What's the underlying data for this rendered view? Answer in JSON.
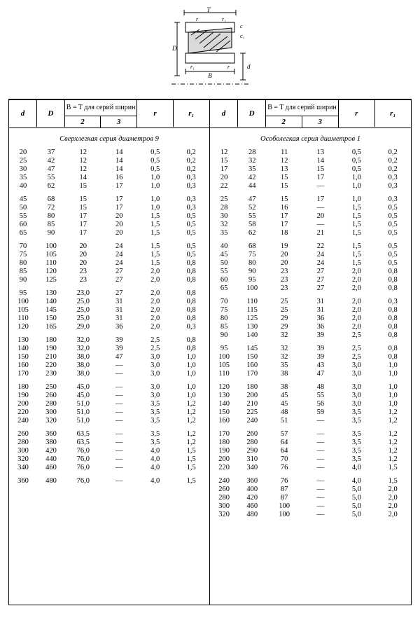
{
  "diagram": {
    "labels": [
      "T",
      "r",
      "r₁",
      "c",
      "c₁",
      "D",
      "r₁",
      "r",
      "B",
      "d"
    ]
  },
  "header": {
    "d": "d",
    "D": "D",
    "bt_caption": "B = T для серий ширин",
    "col2": "2",
    "col3": "3",
    "r": "r",
    "r1": "r₁"
  },
  "left": {
    "title": "Сверхлегкая серия диаметров 9",
    "groups": [
      [
        [
          "20",
          "37",
          "12",
          "14",
          "0,5",
          "0,2"
        ],
        [
          "25",
          "42",
          "12",
          "14",
          "0,5",
          "0,2"
        ],
        [
          "30",
          "47",
          "12",
          "14",
          "0,5",
          "0,2"
        ],
        [
          "35",
          "55",
          "14",
          "16",
          "1,0",
          "0,3"
        ],
        [
          "40",
          "62",
          "15",
          "17",
          "1,0",
          "0,3"
        ]
      ],
      [
        [
          "45",
          "68",
          "15",
          "17",
          "1,0",
          "0,3"
        ],
        [
          "50",
          "72",
          "15",
          "17",
          "1,0",
          "0,3"
        ],
        [
          "55",
          "80",
          "17",
          "20",
          "1,5",
          "0,5"
        ],
        [
          "60",
          "85",
          "17",
          "20",
          "1,5",
          "0,5"
        ],
        [
          "65",
          "90",
          "17",
          "20",
          "1,5",
          "0,5"
        ]
      ],
      [
        [
          "70",
          "100",
          "20",
          "24",
          "1,5",
          "0,5"
        ],
        [
          "75",
          "105",
          "20",
          "24",
          "1,5",
          "0,5"
        ],
        [
          "80",
          "110",
          "20",
          "24",
          "1,5",
          "0,8"
        ],
        [
          "85",
          "120",
          "23",
          "27",
          "2,0",
          "0,8"
        ],
        [
          "90",
          "125",
          "23",
          "27",
          "2,0",
          "0,8"
        ]
      ],
      [
        [
          "95",
          "130",
          "23,0",
          "27",
          "2,0",
          "0,8"
        ],
        [
          "100",
          "140",
          "25,0",
          "31",
          "2,0",
          "0,8"
        ],
        [
          "105",
          "145",
          "25,0",
          "31",
          "2,0",
          "0,8"
        ],
        [
          "110",
          "150",
          "25,0",
          "31",
          "2,0",
          "0,8"
        ],
        [
          "120",
          "165",
          "29,0",
          "36",
          "2,0",
          "0,3"
        ]
      ],
      [
        [
          "130",
          "180",
          "32,0",
          "39",
          "2,5",
          "0,8"
        ],
        [
          "140",
          "190",
          "32,0",
          "39",
          "2,5",
          "0,8"
        ],
        [
          "150",
          "210",
          "38,0",
          "47",
          "3,0",
          "1,0"
        ],
        [
          "160",
          "220",
          "38,0",
          "—",
          "3,0",
          "1,0"
        ],
        [
          "170",
          "230",
          "38,0",
          "—",
          "3,0",
          "1,0"
        ]
      ],
      [
        [
          "180",
          "250",
          "45,0",
          "—",
          "3,0",
          "1,0"
        ],
        [
          "190",
          "260",
          "45,0",
          "—",
          "3,0",
          "1,0"
        ],
        [
          "200",
          "280",
          "51,0",
          "—",
          "3,5",
          "1,2"
        ],
        [
          "220",
          "300",
          "51,0",
          "—",
          "3,5",
          "1,2"
        ],
        [
          "240",
          "320",
          "51,0",
          "—",
          "3,5",
          "1,2"
        ]
      ],
      [
        [
          "260",
          "360",
          "63,5",
          "—",
          "3,5",
          "1,2"
        ],
        [
          "280",
          "380",
          "63,5",
          "—",
          "3,5",
          "1,2"
        ],
        [
          "300",
          "420",
          "76,0",
          "—",
          "4,0",
          "1,5"
        ],
        [
          "320",
          "440",
          "76,0",
          "—",
          "4,0",
          "1,5"
        ],
        [
          "340",
          "460",
          "76,0",
          "—",
          "4,0",
          "1,5"
        ]
      ],
      [
        [
          "360",
          "480",
          "76,0",
          "—",
          "4,0",
          "1,5"
        ]
      ]
    ]
  },
  "right": {
    "title": "Особолегкая серия диаметров 1",
    "groups": [
      [
        [
          "12",
          "28",
          "11",
          "13",
          "0,5",
          "0,2"
        ],
        [
          "15",
          "32",
          "12",
          "14",
          "0,5",
          "0,2"
        ],
        [
          "17",
          "35",
          "13",
          "15",
          "0,5",
          "0,2"
        ],
        [
          "20",
          "42",
          "15",
          "17",
          "1,0",
          "0,3"
        ],
        [
          "22",
          "44",
          "15",
          "—",
          "1,0",
          "0,3"
        ]
      ],
      [
        [
          "25",
          "47",
          "15",
          "17",
          "1,0",
          "0,3"
        ],
        [
          "28",
          "52",
          "16",
          "—",
          "1,5",
          "0,5"
        ],
        [
          "30",
          "55",
          "17",
          "20",
          "1,5",
          "0,5"
        ],
        [
          "32",
          "58",
          "17",
          "—",
          "1,5",
          "0,5"
        ],
        [
          "35",
          "62",
          "18",
          "21",
          "1,5",
          "0,5"
        ]
      ],
      [
        [
          "40",
          "68",
          "19",
          "22",
          "1,5",
          "0,5"
        ],
        [
          "45",
          "75",
          "20",
          "24",
          "1,5",
          "0,5"
        ],
        [
          "50",
          "80",
          "20",
          "24",
          "1,5",
          "0,5"
        ],
        [
          "55",
          "90",
          "23",
          "27",
          "2,0",
          "0,8"
        ],
        [
          "60",
          "95",
          "23",
          "27",
          "2,0",
          "0,8"
        ],
        [
          "65",
          "100",
          "23",
          "27",
          "2,0",
          "0,8"
        ]
      ],
      [
        [
          "70",
          "110",
          "25",
          "31",
          "2,0",
          "0,3"
        ],
        [
          "75",
          "115",
          "25",
          "31",
          "2,0",
          "0,8"
        ],
        [
          "80",
          "125",
          "29",
          "36",
          "2,0",
          "0,8"
        ],
        [
          "85",
          "130",
          "29",
          "36",
          "2,0",
          "0,8"
        ],
        [
          "90",
          "140",
          "32",
          "39",
          "2,5",
          "0,8"
        ]
      ],
      [
        [
          "95",
          "145",
          "32",
          "39",
          "2,5",
          "0,8"
        ],
        [
          "100",
          "150",
          "32",
          "39",
          "2,5",
          "0,8"
        ],
        [
          "105",
          "160",
          "35",
          "43",
          "3,0",
          "1,0"
        ],
        [
          "110",
          "170",
          "38",
          "47",
          "3,0",
          "1,0"
        ]
      ],
      [
        [
          "120",
          "180",
          "38",
          "48",
          "3,0",
          "1,0"
        ],
        [
          "130",
          "200",
          "45",
          "55",
          "3,0",
          "1,0"
        ],
        [
          "140",
          "210",
          "45",
          "56",
          "3,0",
          "1,0"
        ],
        [
          "150",
          "225",
          "48",
          "59",
          "3,5",
          "1,2"
        ],
        [
          "160",
          "240",
          "51",
          "—",
          "3,5",
          "1,2"
        ]
      ],
      [
        [
          "170",
          "260",
          "57",
          "—",
          "3,5",
          "1,2"
        ],
        [
          "180",
          "280",
          "64",
          "—",
          "3,5",
          "1,2"
        ],
        [
          "190",
          "290",
          "64",
          "—",
          "3,5",
          "1,2"
        ],
        [
          "200",
          "310",
          "70",
          "—",
          "3,5",
          "1,2"
        ],
        [
          "220",
          "340",
          "76",
          "—",
          "4,0",
          "1,5"
        ]
      ],
      [
        [
          "240",
          "360",
          "76",
          "—",
          "4,0",
          "1,5"
        ],
        [
          "260",
          "400",
          "87",
          "—",
          "5,0",
          "2,0"
        ],
        [
          "280",
          "420",
          "87",
          "—",
          "5,0",
          "2,0"
        ],
        [
          "300",
          "460",
          "100",
          "—",
          "5,0",
          "2,0"
        ],
        [
          "320",
          "480",
          "100",
          "—",
          "5,0",
          "2,0"
        ]
      ]
    ]
  }
}
